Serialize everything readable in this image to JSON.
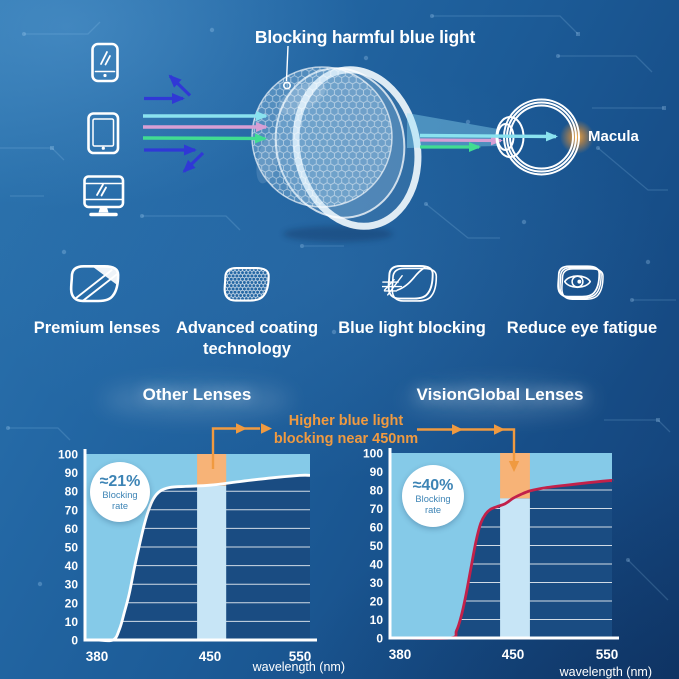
{
  "hero": {
    "title": "Blocking harmful blue light",
    "macula_label": "Macula",
    "device_icons": [
      "smartphone-icon",
      "tablet-icon",
      "monitor-icon"
    ],
    "ray_colors": {
      "blocked_blue": "#3038D6",
      "passed_cyan": "#8AE2EF",
      "passed_pink": "#D79FD4",
      "passed_green": "#41DC92"
    }
  },
  "features": [
    {
      "icon": "premium-lenses-icon",
      "label": "Premium lenses"
    },
    {
      "icon": "advanced-coating-icon",
      "label": "Advanced coating technology"
    },
    {
      "icon": "blue-light-blocking-icon",
      "label": "Blue light blocking"
    },
    {
      "icon": "reduce-eye-fatigue-icon",
      "label": "Reduce eye fatigue"
    }
  ],
  "annotation": {
    "line1": "Higher blue light",
    "line2": "blocking near 450nm",
    "color": "#F09A40"
  },
  "chart_data": [
    {
      "type": "area",
      "title": "Other Lenses",
      "badge": {
        "value": "≈21%",
        "line1": "Blocking",
        "line2": "rate"
      },
      "xlabel": "wavelength (nm)",
      "xticks": [
        380,
        450,
        550
      ],
      "yticks": [
        0,
        10,
        20,
        30,
        40,
        50,
        60,
        70,
        80,
        90,
        100
      ],
      "xlim": [
        380,
        550
      ],
      "ylim": [
        0,
        100
      ],
      "grid": true,
      "highlight_band_nm": [
        442,
        468
      ],
      "band_center_nm": 450,
      "blocking_rate_at_450": 83,
      "curve_color": "#FFFFFF",
      "area_above_color": "#85CAE8",
      "band_below_color": "#C7E5F6",
      "band_above_color": "#F7B377",
      "plot_bg_color": "#1A4C82",
      "curve_points": [
        [
          380,
          0
        ],
        [
          390,
          0
        ],
        [
          394,
          6
        ],
        [
          397,
          15
        ],
        [
          400,
          25
        ],
        [
          403,
          38
        ],
        [
          406,
          50
        ],
        [
          409,
          61
        ],
        [
          412,
          70
        ],
        [
          415,
          76
        ],
        [
          419,
          80
        ],
        [
          425,
          82
        ],
        [
          435,
          82.6
        ],
        [
          450,
          83.2
        ],
        [
          480,
          85
        ],
        [
          515,
          87
        ],
        [
          550,
          88.5
        ]
      ]
    },
    {
      "type": "area",
      "title": "VisionGlobal Lenses",
      "badge": {
        "value": "≈40%",
        "line1": "Blocking",
        "line2": "rate"
      },
      "xlabel": "wavelength (nm)",
      "xticks": [
        380,
        450,
        550
      ],
      "yticks": [
        0,
        10,
        20,
        30,
        40,
        50,
        60,
        70,
        80,
        90,
        100
      ],
      "xlim": [
        380,
        550
      ],
      "ylim": [
        0,
        100
      ],
      "grid": true,
      "highlight_band_nm": [
        442,
        468
      ],
      "band_center_nm": 450,
      "blocking_rate_at_450": 75.5,
      "curve_color": "#C2214A",
      "area_above_color": "#85CAE8",
      "band_below_color": "#C7E5F6",
      "band_above_color": "#F7B377",
      "plot_bg_color": "#1A4C82",
      "curve_points": [
        [
          380,
          0
        ],
        [
          411,
          0
        ],
        [
          415,
          4
        ],
        [
          418,
          12
        ],
        [
          421,
          24
        ],
        [
          424,
          38
        ],
        [
          427,
          52
        ],
        [
          430,
          62
        ],
        [
          433,
          67
        ],
        [
          436,
          69.5
        ],
        [
          440,
          71
        ],
        [
          445,
          72.5
        ],
        [
          450,
          75.5
        ],
        [
          458,
          77.5
        ],
        [
          468,
          79.5
        ],
        [
          482,
          81
        ],
        [
          505,
          82.5
        ],
        [
          550,
          85
        ]
      ]
    }
  ]
}
